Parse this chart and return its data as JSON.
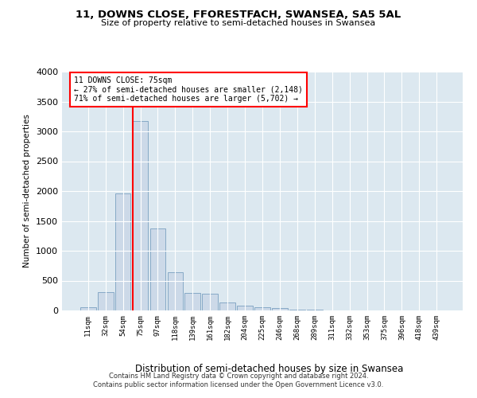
{
  "title": "11, DOWNS CLOSE, FFORESTFACH, SWANSEA, SA5 5AL",
  "subtitle": "Size of property relative to semi-detached houses in Swansea",
  "xlabel": "Distribution of semi-detached houses by size in Swansea",
  "ylabel": "Number of semi-detached properties",
  "footer_line1": "Contains HM Land Registry data © Crown copyright and database right 2024.",
  "footer_line2": "Contains public sector information licensed under the Open Government Licence v3.0.",
  "annotation_title": "11 DOWNS CLOSE: 75sqm",
  "annotation_line1": "← 27% of semi-detached houses are smaller (2,148)",
  "annotation_line2": "71% of semi-detached houses are larger (5,702) →",
  "bar_categories": [
    "11sqm",
    "32sqm",
    "54sqm",
    "75sqm",
    "97sqm",
    "118sqm",
    "139sqm",
    "161sqm",
    "182sqm",
    "204sqm",
    "225sqm",
    "246sqm",
    "268sqm",
    "289sqm",
    "311sqm",
    "332sqm",
    "353sqm",
    "375sqm",
    "396sqm",
    "418sqm",
    "439sqm"
  ],
  "bar_values": [
    50,
    310,
    1960,
    3180,
    1380,
    640,
    300,
    275,
    130,
    75,
    55,
    35,
    20,
    10,
    5,
    3,
    2,
    2,
    1,
    1,
    0
  ],
  "bar_color": "#ccd9e8",
  "bar_edgecolor": "#7aa0c0",
  "red_line_color": "red",
  "ylim": [
    0,
    4000
  ],
  "yticks": [
    0,
    500,
    1000,
    1500,
    2000,
    2500,
    3000,
    3500,
    4000
  ],
  "plot_background": "#dce8f0",
  "grid_color": "white",
  "annotation_box_facecolor": "white",
  "annotation_box_edgecolor": "red"
}
